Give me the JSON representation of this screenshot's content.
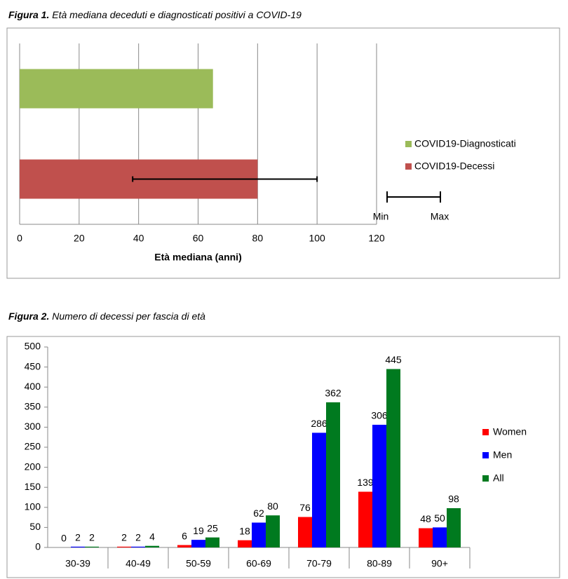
{
  "chart_data": [
    {
      "type": "bar",
      "orientation": "horizontal",
      "title_label": "Figura 1.",
      "title": "Età mediana deceduti e diagnosticati positivi a COVID-19",
      "x_label": "Età mediana (anni)",
      "series": [
        {
          "name": "COVID19-Diagnosticati",
          "color": "#9bbb59",
          "values": [
            65
          ]
        },
        {
          "name": "COVID19-Decessi",
          "color": "#c0504d",
          "values": [
            80
          ],
          "error_min": [
            38
          ],
          "error_max": [
            100
          ]
        }
      ],
      "error_legend": [
        "Min",
        "Max"
      ],
      "xlim": [
        0,
        120
      ],
      "xticks": [
        0,
        20,
        40,
        60,
        80,
        100,
        120
      ],
      "grid": true,
      "legend": "right"
    },
    {
      "type": "bar",
      "orientation": "vertical",
      "title_label": "Figura 2.",
      "title": "Numero di decessi per fascia di età",
      "categories": [
        "30-39",
        "40-49",
        "50-59",
        "60-69",
        "70-79",
        "80-89",
        "90+"
      ],
      "series": [
        {
          "name": "Women",
          "color": "#ff0000",
          "values": [
            0,
            2,
            6,
            18,
            76,
            139,
            48
          ]
        },
        {
          "name": "Men",
          "color": "#0000ff",
          "values": [
            2,
            2,
            19,
            62,
            286,
            306,
            50
          ]
        },
        {
          "name": "All",
          "color": "#007a1f",
          "values": [
            2,
            4,
            25,
            80,
            362,
            445,
            98
          ]
        }
      ],
      "ylim": [
        0,
        500
      ],
      "yticks": [
        0,
        50,
        100,
        150,
        200,
        250,
        300,
        350,
        400,
        450,
        500
      ],
      "grid": false,
      "legend": "right",
      "data_labels": true
    }
  ]
}
